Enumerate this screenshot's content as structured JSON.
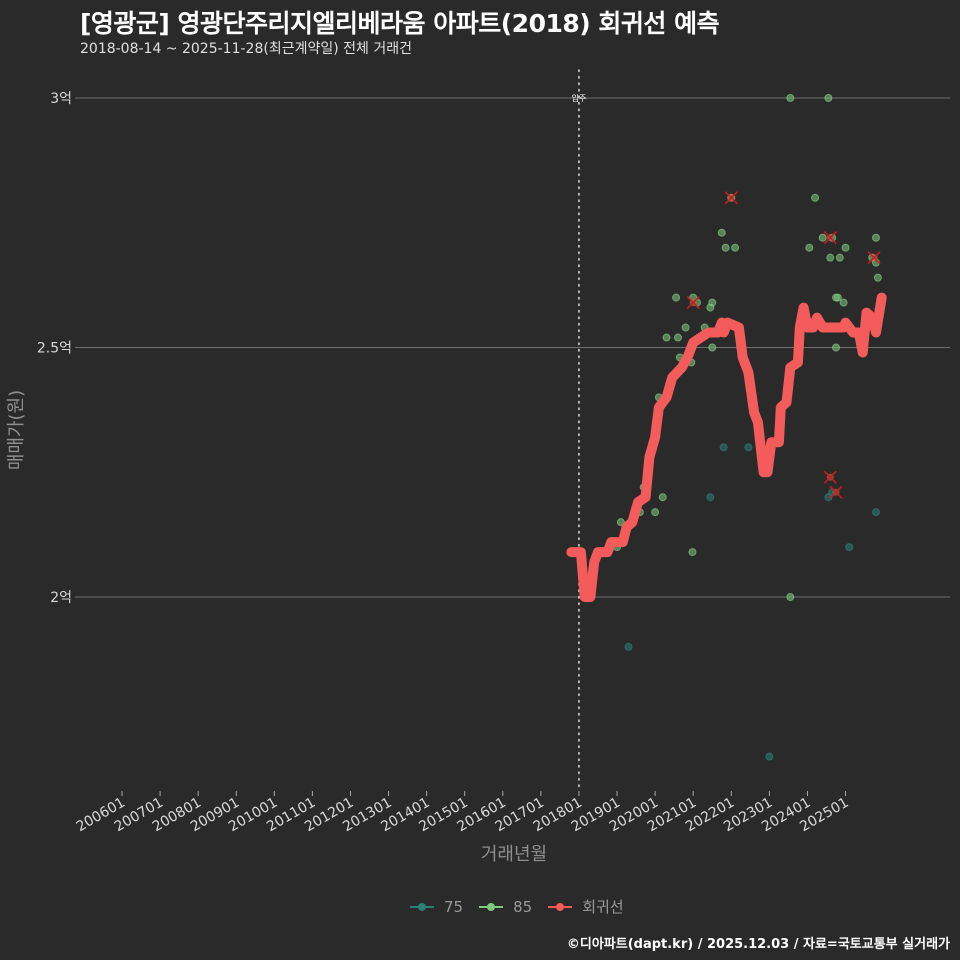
{
  "title": "[영광군] 영광단주리지엘리베라움 아파트(2018) 회귀선 예측",
  "subtitle": "2018-08-14 ~ 2025-11-28(최근계약일) 전체 거래건",
  "footer": "©디아파트(dapt.kr) / 2025.12.03 / 자료=국토교통부 실거래가",
  "colors": {
    "background": "#2a2a2b",
    "grid": "#6e6e6e",
    "series_75": "#2a7f77",
    "series_85": "#7fc97f",
    "regression": "#f45b5b",
    "outlier_x": "#d11a1a"
  },
  "legend": {
    "items": [
      {
        "label": "75",
        "color": "#2a7f77"
      },
      {
        "label": "85",
        "color": "#7fc97f"
      },
      {
        "label": "회귀선",
        "color": "#f45b5b"
      }
    ]
  },
  "chart_data": {
    "type": "scatter",
    "title": "[영광군] 영광단주리지엘리베라움 아파트(2018) 회귀선 예측",
    "subtitle": "2018-08-14 ~ 2025-11-28(최근계약일) 전체 거래건",
    "xlabel": "거래년월",
    "ylabel": "매매가(원)",
    "x_tick_labels": [
      "200601",
      "200701",
      "200801",
      "200901",
      "201001",
      "201101",
      "201201",
      "201301",
      "201401",
      "201501",
      "201601",
      "201701",
      "201801",
      "201901",
      "202001",
      "202101",
      "202201",
      "202301",
      "202401",
      "202501"
    ],
    "y_tick_labels": [
      "2억",
      "2.5억",
      "3억"
    ],
    "y_ticks": [
      2.0,
      2.5,
      3.0
    ],
    "ylim": [
      1.63,
      3.06
    ],
    "xlim": [
      2004.9,
      2025.96
    ],
    "grid": true,
    "legend_position": "bottom",
    "annotation": {
      "label": "입주",
      "x": 2018.0
    },
    "series": [
      {
        "name": "75",
        "unit": "억",
        "points": [
          [
            2019.3,
            1.9
          ],
          [
            2021.45,
            2.2
          ],
          [
            2021.8,
            2.3
          ],
          [
            2022.45,
            2.3
          ],
          [
            2023.0,
            1.68
          ],
          [
            2024.55,
            2.2
          ],
          [
            2024.65,
            2.21
          ],
          [
            2025.1,
            2.1
          ],
          [
            2025.8,
            2.17
          ]
        ]
      },
      {
        "name": "85",
        "unit": "억",
        "points": [
          [
            2019.0,
            2.1
          ],
          [
            2019.1,
            2.15
          ],
          [
            2019.6,
            2.17
          ],
          [
            2019.7,
            2.22
          ],
          [
            2020.0,
            2.17
          ],
          [
            2020.1,
            2.4
          ],
          [
            2020.2,
            2.2
          ],
          [
            2020.3,
            2.52
          ],
          [
            2020.55,
            2.6
          ],
          [
            2020.6,
            2.52
          ],
          [
            2020.65,
            2.48
          ],
          [
            2020.8,
            2.54
          ],
          [
            2020.95,
            2.47
          ],
          [
            2020.98,
            2.09
          ],
          [
            2021.0,
            2.6
          ],
          [
            2021.1,
            2.59
          ],
          [
            2021.3,
            2.54
          ],
          [
            2021.45,
            2.58
          ],
          [
            2021.5,
            2.59
          ],
          [
            2021.5,
            2.5
          ],
          [
            2021.75,
            2.73
          ],
          [
            2021.85,
            2.7
          ],
          [
            2022.0,
            2.8
          ],
          [
            2022.1,
            2.7
          ],
          [
            2023.55,
            3.0
          ],
          [
            2023.55,
            2.0
          ],
          [
            2024.05,
            2.7
          ],
          [
            2024.2,
            2.8
          ],
          [
            2024.4,
            2.72
          ],
          [
            2024.55,
            3.0
          ],
          [
            2024.6,
            2.68
          ],
          [
            2024.65,
            2.72
          ],
          [
            2024.75,
            2.6
          ],
          [
            2024.75,
            2.5
          ],
          [
            2024.85,
            2.68
          ],
          [
            2024.8,
            2.6
          ],
          [
            2024.95,
            2.59
          ],
          [
            2025.0,
            2.7
          ],
          [
            2025.7,
            2.68
          ],
          [
            2025.8,
            2.72
          ],
          [
            2025.85,
            2.64
          ],
          [
            2025.8,
            2.67
          ]
        ]
      },
      {
        "name": "회귀선",
        "unit": "억",
        "points": [
          [
            2017.8,
            2.09
          ],
          [
            2018.05,
            2.09
          ],
          [
            2018.15,
            2.0
          ],
          [
            2018.3,
            2.0
          ],
          [
            2018.4,
            2.07
          ],
          [
            2018.5,
            2.09
          ],
          [
            2018.75,
            2.09
          ],
          [
            2018.85,
            2.11
          ],
          [
            2019.15,
            2.11
          ],
          [
            2019.25,
            2.14
          ],
          [
            2019.4,
            2.15
          ],
          [
            2019.55,
            2.19
          ],
          [
            2019.75,
            2.2
          ],
          [
            2019.85,
            2.28
          ],
          [
            2020.0,
            2.32
          ],
          [
            2020.1,
            2.38
          ],
          [
            2020.3,
            2.4
          ],
          [
            2020.45,
            2.44
          ],
          [
            2020.7,
            2.46
          ],
          [
            2020.85,
            2.48
          ],
          [
            2021.0,
            2.51
          ],
          [
            2021.2,
            2.52
          ],
          [
            2021.4,
            2.53
          ],
          [
            2021.65,
            2.53
          ],
          [
            2021.75,
            2.55
          ],
          [
            2021.8,
            2.53
          ],
          [
            2021.9,
            2.55
          ],
          [
            2022.2,
            2.54
          ],
          [
            2022.3,
            2.48
          ],
          [
            2022.45,
            2.45
          ],
          [
            2022.6,
            2.37
          ],
          [
            2022.7,
            2.35
          ],
          [
            2022.85,
            2.25
          ],
          [
            2022.95,
            2.25
          ],
          [
            2023.05,
            2.31
          ],
          [
            2023.25,
            2.31
          ],
          [
            2023.3,
            2.38
          ],
          [
            2023.45,
            2.39
          ],
          [
            2023.55,
            2.46
          ],
          [
            2023.75,
            2.47
          ],
          [
            2023.8,
            2.54
          ],
          [
            2023.9,
            2.58
          ],
          [
            2024.0,
            2.54
          ],
          [
            2024.15,
            2.54
          ],
          [
            2024.25,
            2.56
          ],
          [
            2024.4,
            2.54
          ],
          [
            2024.8,
            2.54
          ],
          [
            2024.95,
            2.54
          ],
          [
            2025.0,
            2.55
          ],
          [
            2025.2,
            2.53
          ],
          [
            2025.35,
            2.53
          ],
          [
            2025.45,
            2.49
          ],
          [
            2025.55,
            2.57
          ],
          [
            2025.7,
            2.56
          ],
          [
            2025.8,
            2.53
          ],
          [
            2025.95,
            2.6
          ]
        ]
      }
    ],
    "outliers": [
      [
        2021.0,
        2.59
      ],
      [
        2022.0,
        2.8
      ],
      [
        2024.6,
        2.72
      ],
      [
        2024.6,
        2.24
      ],
      [
        2024.75,
        2.21
      ],
      [
        2025.75,
        2.68
      ]
    ]
  }
}
